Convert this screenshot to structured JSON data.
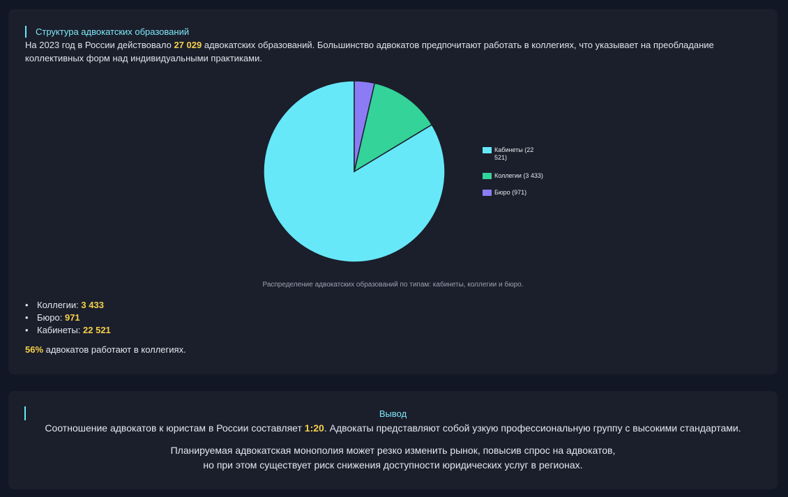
{
  "structure": {
    "title": "Структура адвокатских образований",
    "intro_before": "На 2023 год в России действовало ",
    "intro_total": "27 029",
    "intro_after": " адвокатских образований. Большинство адвокатов предпочитают работать в коллегиях, что указывает на преобладание коллективных форм над индивидуальными практиками.",
    "caption": "Распределение адвокатских образований по типам: кабинеты, коллегии и бюро.",
    "stats": [
      {
        "label": "Коллегии: ",
        "value": "3 433"
      },
      {
        "label": "Бюро: ",
        "value": "971"
      },
      {
        "label": "Кабинеты: ",
        "value": "22 521"
      }
    ],
    "share_value": "56%",
    "share_text": " адвокатов работают в коллегиях."
  },
  "chart_data": {
    "type": "pie",
    "categories": [
      "Кабинеты",
      "Коллегии",
      "Бюро"
    ],
    "values": [
      22521,
      3433,
      971
    ],
    "legend_labels": [
      "Кабинеты (22 521)",
      "Коллегии (3 433)",
      "Бюро (971)"
    ],
    "colors": [
      "#67e8f9",
      "#34d399",
      "#8b7cf6"
    ],
    "legend_position": "right"
  },
  "conclusion": {
    "title": "Вывод",
    "p1_before": "Соотношение адвокатов к юристам в России составляет ",
    "p1_ratio": "1:20",
    "p1_after": ". Адвокаты представляют собой узкую профессиональную группу с высокими стандартами.",
    "p2": "Планируемая адвокатская монополия может резко изменить рынок, повысив спрос на адвокатов, но при этом существует риск снижения доступности юридических услуг в регионах."
  }
}
